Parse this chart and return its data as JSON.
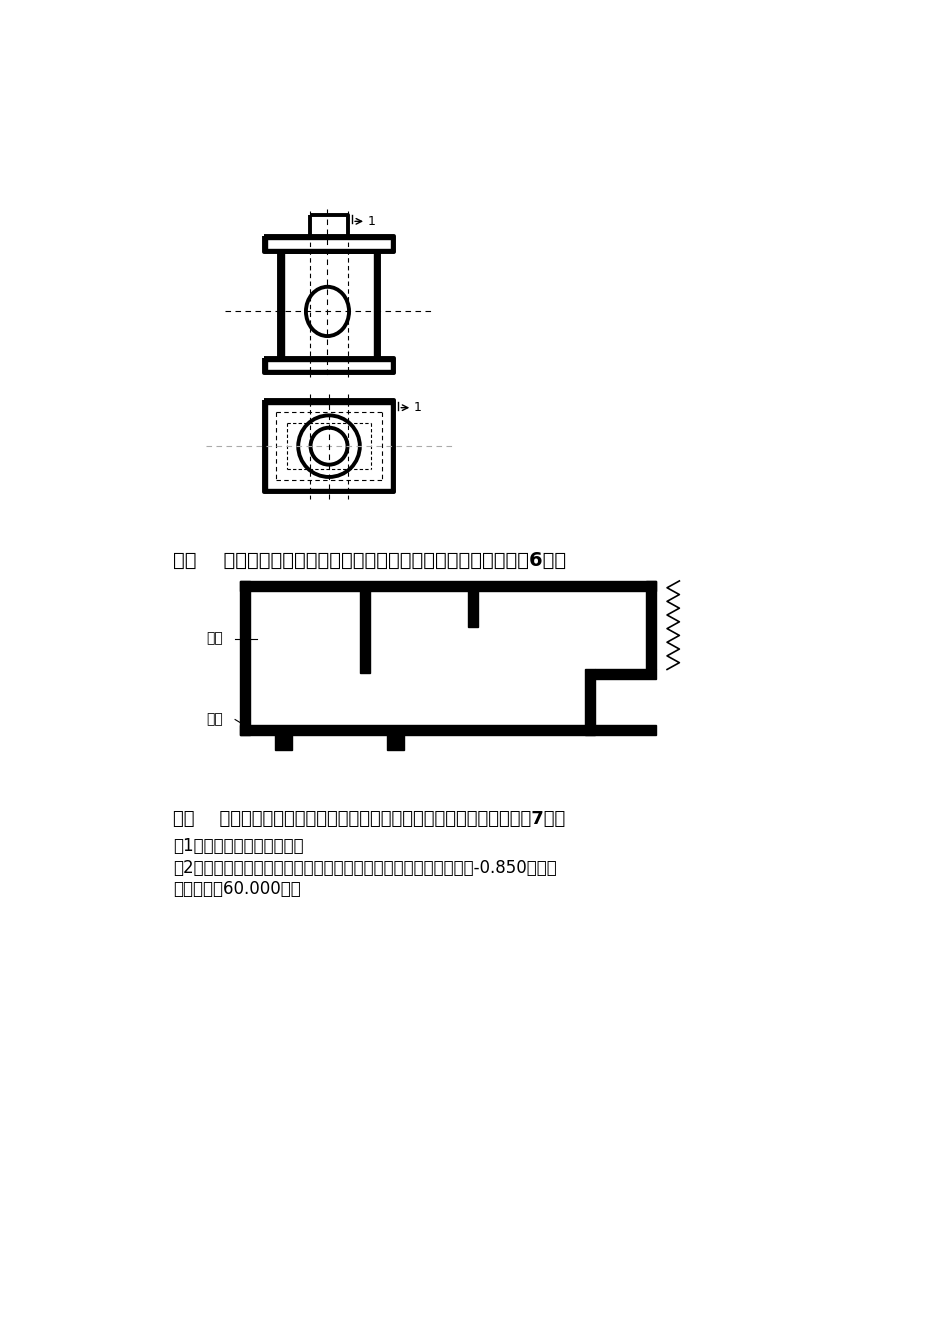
{
  "bg_color": "#ffffff",
  "section4_title": "四、    画出局部平面图中定位轴线的圆圈并标注定位轴线编号。（6分）",
  "section5_title": "五、    在由砖砌筑的基础墙和毛石砌筑的大放脚的基础详图中，完成：（7分）",
  "section5_sub1": "（1）画出砖及混凝土图例。",
  "section5_sub2": "（2）注出大放脚高度。注出基础底面的标高，注出室外地面的标高-0.850米，室",
  "section5_sub3": "内地面标高60.000米。",
  "label_geqiang": "隔墙",
  "label_taijie": "台阶"
}
